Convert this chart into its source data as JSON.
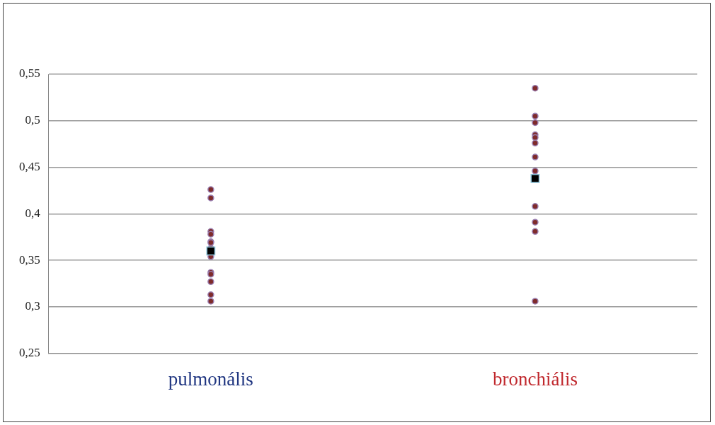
{
  "chart_data": {
    "type": "scatter",
    "categories": [
      "pulmonális",
      "bronchiális"
    ],
    "series": [
      {
        "color": "#7f2b2b",
        "marker": "circle",
        "x": [
          "pulmonális",
          "pulmonális",
          "pulmonális",
          "pulmonális",
          "pulmonális",
          "pulmonális",
          "pulmonális",
          "pulmonális",
          "pulmonális",
          "pulmonális",
          "pulmonális",
          "pulmonális",
          "pulmonális"
        ],
        "values": [
          0.426,
          0.417,
          0.381,
          0.378,
          0.37,
          0.369,
          0.363,
          0.354,
          0.337,
          0.335,
          0.327,
          0.313,
          0.306
        ]
      },
      {
        "color": "#7f2b2b",
        "marker": "circle",
        "x": [
          "bronchiális",
          "bronchiális",
          "bronchiális",
          "bronchiális",
          "bronchiális",
          "bronchiális",
          "bronchiális",
          "bronchiális",
          "bronchiális",
          "bronchiális",
          "bronchiális",
          "bronchiális"
        ],
        "values": [
          0.535,
          0.505,
          0.498,
          0.485,
          0.482,
          0.476,
          0.461,
          0.446,
          0.408,
          0.391,
          0.381,
          0.306
        ]
      },
      {
        "color": "#000000",
        "marker": "square",
        "x": [
          "pulmonális",
          "bronchiális"
        ],
        "values": [
          0.36,
          0.438
        ]
      }
    ],
    "ylim": [
      0.25,
      0.55
    ],
    "yticks": [
      {
        "value": 0.25,
        "label": "0,25"
      },
      {
        "value": 0.3,
        "label": "0,3"
      },
      {
        "value": 0.35,
        "label": "0,35"
      },
      {
        "value": 0.4,
        "label": "0,4"
      },
      {
        "value": 0.45,
        "label": "0,45"
      },
      {
        "value": 0.5,
        "label": "0,5"
      },
      {
        "value": 0.55,
        "label": "0,55"
      }
    ],
    "grid": "y",
    "legend": false
  }
}
